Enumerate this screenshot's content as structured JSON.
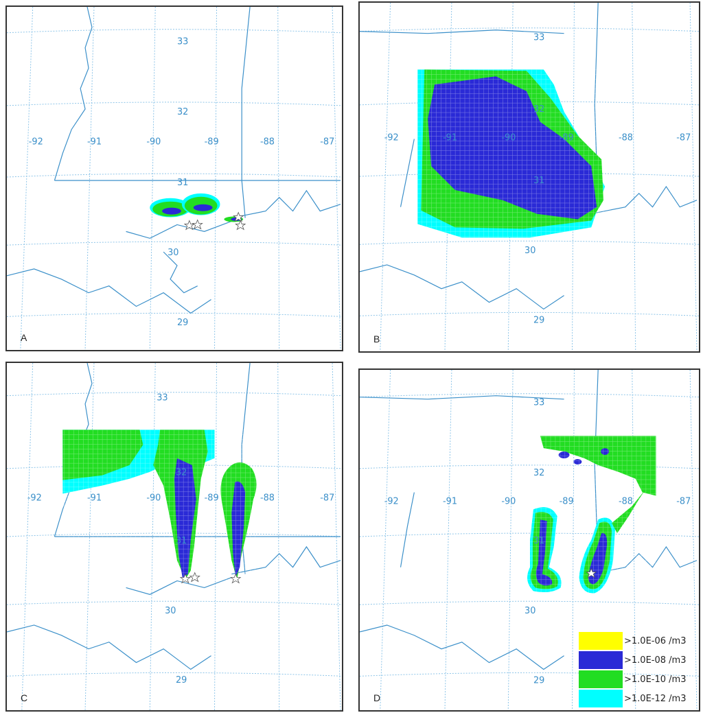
{
  "panels": [
    {
      "id": "A",
      "letter": "A"
    },
    {
      "id": "B",
      "letter": "B"
    },
    {
      "id": "C",
      "letter": "C"
    },
    {
      "id": "D",
      "letter": "D"
    }
  ],
  "graticule": {
    "latitudes": [
      "33",
      "32",
      "31",
      "30",
      "29"
    ],
    "longitudes": [
      "-92",
      "-91",
      "-90",
      "-89",
      "-88",
      "-87"
    ]
  },
  "colors": {
    "level_1e06": "#ffff00",
    "level_1e08": "#2a2ad6",
    "level_1e10": "#22dd22",
    "level_1e12": "#00ffff",
    "boundary": "#3a8fc9",
    "grid": "#8cc4e8"
  },
  "legend": {
    "items": [
      {
        "label": ">1.0E-06 /m3",
        "color": "#ffff00"
      },
      {
        "label": ">1.0E-08 /m3",
        "color": "#2a2ad6"
      },
      {
        "label": ">1.0E-10 /m3",
        "color": "#22dd22"
      },
      {
        "label": ">1.0E-12 /m3",
        "color": "#00ffff"
      }
    ]
  }
}
